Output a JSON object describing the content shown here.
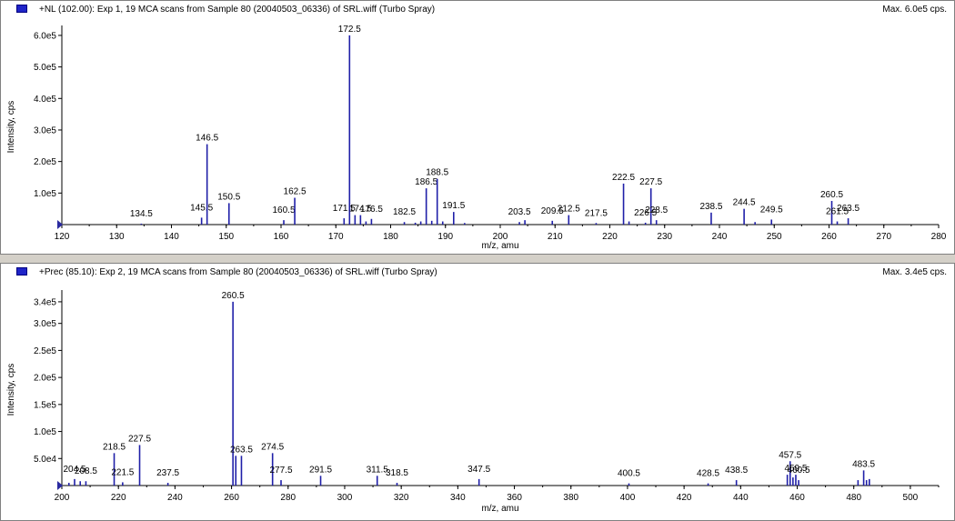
{
  "colors": {
    "peak": "#1f1fa8",
    "axis": "#000000",
    "window": "#d4d0c8",
    "label": "#000000",
    "title_square": "#1f24c8"
  },
  "chart_data": [
    {
      "type": "bar",
      "title": "+NL (102.00): Exp 1, 19 MCA scans from Sample 80 (20040503_06336) of SRL.wiff (Turbo Spray)",
      "max_label": "Max. 6.0e5 cps.",
      "xlabel": "m/z, amu",
      "ylabel": "Intensity, cps",
      "xlim": [
        120,
        280
      ],
      "ylim": [
        0,
        620000
      ],
      "xticks": [
        120,
        130,
        140,
        150,
        160,
        170,
        180,
        190,
        200,
        210,
        220,
        230,
        240,
        250,
        260,
        270,
        280
      ],
      "yticks": [
        {
          "value": 100000,
          "label": "1.0e5"
        },
        {
          "value": 200000,
          "label": "2.0e5"
        },
        {
          "value": 300000,
          "label": "3.0e5"
        },
        {
          "value": 400000,
          "label": "4.0e5"
        },
        {
          "value": 500000,
          "label": "5.0e5"
        },
        {
          "value": 600000,
          "label": "6.0e5"
        }
      ],
      "peaks": [
        {
          "x": 134.5,
          "y": 3000,
          "label": "134.5"
        },
        {
          "x": 145.5,
          "y": 22000,
          "label": "145.5"
        },
        {
          "x": 146.5,
          "y": 255000,
          "label": "146.5"
        },
        {
          "x": 150.5,
          "y": 68000,
          "label": "150.5"
        },
        {
          "x": 160.5,
          "y": 14000,
          "label": "160.5"
        },
        {
          "x": 162.5,
          "y": 85000,
          "label": "162.5"
        },
        {
          "x": 171.5,
          "y": 20000,
          "label": "171.5"
        },
        {
          "x": 172.5,
          "y": 600000,
          "label": "172.5"
        },
        {
          "x": 173.5,
          "y": 30000
        },
        {
          "x": 174.5,
          "y": 30000,
          "label": "174.5"
        },
        {
          "x": 175.5,
          "y": 10000
        },
        {
          "x": 176.5,
          "y": 18000,
          "label": "176.5"
        },
        {
          "x": 182.5,
          "y": 8000,
          "label": "182.5"
        },
        {
          "x": 184.5,
          "y": 6000
        },
        {
          "x": 185.5,
          "y": 10000
        },
        {
          "x": 186.5,
          "y": 115000,
          "label": "186.5"
        },
        {
          "x": 187.5,
          "y": 12000
        },
        {
          "x": 188.5,
          "y": 145000,
          "label": "188.5"
        },
        {
          "x": 189.5,
          "y": 10000
        },
        {
          "x": 191.5,
          "y": 40000,
          "label": "191.5"
        },
        {
          "x": 193.5,
          "y": 5000
        },
        {
          "x": 203.5,
          "y": 8000,
          "label": "203.5"
        },
        {
          "x": 204.5,
          "y": 14000
        },
        {
          "x": 209.5,
          "y": 12000,
          "label": "209.5"
        },
        {
          "x": 212.5,
          "y": 30000,
          "label": "212.5"
        },
        {
          "x": 217.5,
          "y": 5000,
          "label": "217.5"
        },
        {
          "x": 222.5,
          "y": 130000,
          "label": "222.5"
        },
        {
          "x": 223.5,
          "y": 10000
        },
        {
          "x": 226.5,
          "y": 6000,
          "label": "226.5"
        },
        {
          "x": 227.5,
          "y": 115000,
          "label": "227.5"
        },
        {
          "x": 228.5,
          "y": 14000,
          "label": "228.5"
        },
        {
          "x": 238.5,
          "y": 38000,
          "label": "238.5"
        },
        {
          "x": 244.5,
          "y": 50000,
          "label": "244.5"
        },
        {
          "x": 246.5,
          "y": 8000
        },
        {
          "x": 249.5,
          "y": 16000,
          "label": "249.5"
        },
        {
          "x": 260.5,
          "y": 75000,
          "label": "260.5"
        },
        {
          "x": 261.5,
          "y": 10000,
          "label": "261.5"
        },
        {
          "x": 263.5,
          "y": 20000,
          "label": "263.5"
        }
      ]
    },
    {
      "type": "bar",
      "title": "+Prec (85.10): Exp 2, 19 MCA scans from Sample 80 (20040503_06336) of SRL.wiff (Turbo Spray)",
      "max_label": "Max. 3.4e5 cps.",
      "xlabel": "m/z, amu",
      "ylabel": "Intensity, cps",
      "xlim": [
        200,
        510
      ],
      "ylim": [
        0,
        355000
      ],
      "xticks": [
        200,
        220,
        240,
        260,
        280,
        300,
        320,
        340,
        360,
        380,
        400,
        420,
        440,
        460,
        480,
        500
      ],
      "yticks": [
        {
          "value": 50000,
          "label": "5.0e4"
        },
        {
          "value": 100000,
          "label": "1.0e5"
        },
        {
          "value": 150000,
          "label": "1.5e5"
        },
        {
          "value": 200000,
          "label": "2.0e5"
        },
        {
          "value": 250000,
          "label": "2.5e5"
        },
        {
          "value": 300000,
          "label": "3.0e5"
        },
        {
          "value": 340000,
          "label": "3.4e5"
        }
      ],
      "peaks": [
        {
          "x": 202.5,
          "y": 5000
        },
        {
          "x": 204.5,
          "y": 12000,
          "label": "204.5"
        },
        {
          "x": 206.5,
          "y": 8000
        },
        {
          "x": 208.5,
          "y": 8000,
          "label": "208.5"
        },
        {
          "x": 218.5,
          "y": 60000,
          "label": "218.5"
        },
        {
          "x": 221.5,
          "y": 6000,
          "label": "221.5"
        },
        {
          "x": 227.5,
          "y": 75000,
          "label": "227.5"
        },
        {
          "x": 237.5,
          "y": 5000,
          "label": "237.5"
        },
        {
          "x": 260.5,
          "y": 340000,
          "label": "260.5"
        },
        {
          "x": 261.5,
          "y": 55000
        },
        {
          "x": 263.5,
          "y": 55000,
          "label": "263.5"
        },
        {
          "x": 274.5,
          "y": 60000,
          "label": "274.5"
        },
        {
          "x": 277.5,
          "y": 10000,
          "label": "277.5"
        },
        {
          "x": 291.5,
          "y": 18000,
          "label": "291.5"
        },
        {
          "x": 311.5,
          "y": 18000,
          "label": "311.5"
        },
        {
          "x": 318.5,
          "y": 5000,
          "label": "318.5"
        },
        {
          "x": 347.5,
          "y": 12000,
          "label": "347.5"
        },
        {
          "x": 400.5,
          "y": 4000,
          "label": "400.5"
        },
        {
          "x": 428.5,
          "y": 4000,
          "label": "428.5"
        },
        {
          "x": 438.5,
          "y": 10000,
          "label": "438.5"
        },
        {
          "x": 456.5,
          "y": 20000
        },
        {
          "x": 457.5,
          "y": 45000,
          "label": "457.5"
        },
        {
          "x": 458.5,
          "y": 15000
        },
        {
          "x": 459.5,
          "y": 20000,
          "label": "459.5"
        },
        {
          "x": 460.5,
          "y": 10000,
          "label": "460.5"
        },
        {
          "x": 481.5,
          "y": 10000
        },
        {
          "x": 483.5,
          "y": 28000,
          "label": "483.5"
        },
        {
          "x": 484.5,
          "y": 10000
        },
        {
          "x": 485.5,
          "y": 12000
        }
      ]
    }
  ]
}
